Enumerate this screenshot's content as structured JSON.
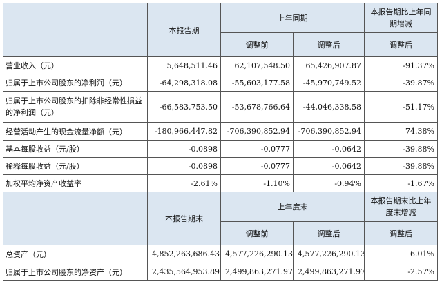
{
  "table1": {
    "header": {
      "current_period": "本报告期",
      "prior_year_period": "上年同期",
      "change_col": "本报告期比上年同期增减",
      "before_adj": "调整前",
      "after_adj": "调整后",
      "change_after_adj": "调整后"
    },
    "rows": [
      {
        "label": "营业收入（元）",
        "current": "5,648,511.46",
        "before": "62,107,548.50",
        "after": "65,426,907.87",
        "change": "-91.37%"
      },
      {
        "label": "归属于上市公司股东的净利润（元）",
        "current": "-64,298,318.08",
        "before": "-55,603,177.58",
        "after": "-45,970,749.52",
        "change": "-39.87%"
      },
      {
        "label": "归属于上市公司股东的扣除非经常性损益的净利润（元）",
        "current": "-66,583,753.50",
        "before": "-53,678,766.64",
        "after": "-44,046,338.58",
        "change": "-51.17%"
      },
      {
        "label": "经营活动产生的现金流量净额（元）",
        "current": "-180,966,447.82",
        "before": "-706,390,852.94",
        "after": "-706,390,852.94",
        "change": "74.38%"
      },
      {
        "label": "基本每股收益（元/股）",
        "current": "-0.0898",
        "before": "-0.0777",
        "after": "-0.0642",
        "change": "-39.88%"
      },
      {
        "label": "稀释每股收益（元/股）",
        "current": "-0.0898",
        "before": "-0.0777",
        "after": "-0.0642",
        "change": "-39.88%"
      },
      {
        "label": "加权平均净资产收益率",
        "current": "-2.61%",
        "before": "-1.10%",
        "after": "-0.94%",
        "change": "-1.67%"
      }
    ]
  },
  "table2": {
    "header": {
      "current_period_end": "本报告期末",
      "prior_year_end": "上年度末",
      "change_col": "本报告期末比上年度末增减",
      "before_adj": "调整前",
      "after_adj": "调整后",
      "change_after_adj": "调整后"
    },
    "rows": [
      {
        "label": "总资产（元）",
        "current": "4,852,263,686.43",
        "before": "4,577,226,290.13",
        "after": "4,577,226,290.13",
        "change": "6.01%"
      },
      {
        "label": "归属于上市公司股东的净资产（元）",
        "current": "2,435,564,953.89",
        "before": "2,499,863,271.97",
        "after": "2,499,863,271.97",
        "change": "-2.57%"
      }
    ]
  },
  "colors": {
    "header_bg": "#dbe6f1",
    "border": "#555555"
  }
}
